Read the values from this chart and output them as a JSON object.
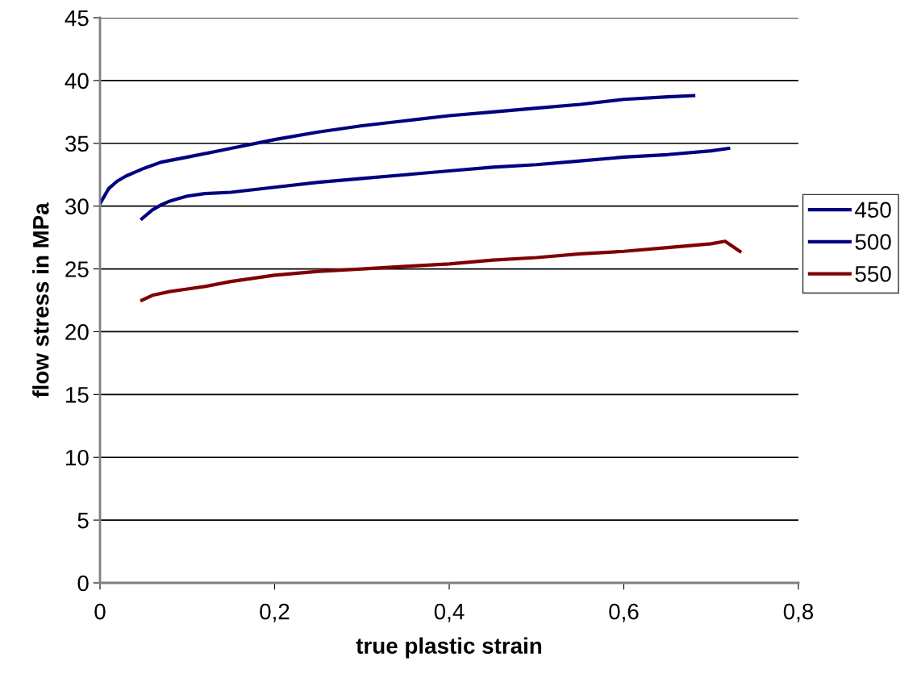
{
  "chart_data": {
    "type": "line",
    "xlabel": "true plastic strain",
    "ylabel": "flow stress in MPa",
    "xlim": [
      0,
      0.8
    ],
    "xticks": [
      {
        "value": 0,
        "label": "0"
      },
      {
        "value": 0.2,
        "label": "0,2"
      },
      {
        "value": 0.4,
        "label": "0,4"
      },
      {
        "value": 0.6,
        "label": "0,6"
      },
      {
        "value": 0.8,
        "label": "0,8"
      }
    ],
    "ylim": [
      0,
      45
    ],
    "yticks": [
      0,
      5,
      10,
      15,
      20,
      25,
      30,
      35,
      40,
      45
    ],
    "grid": "y",
    "legend": "right",
    "marker": "none",
    "line_style": "solid",
    "series": [
      {
        "name": "450",
        "color": "#000080",
        "x": [
          0,
          0.01,
          0.02,
          0.03,
          0.04,
          0.05,
          0.07,
          0.1,
          0.15,
          0.2,
          0.25,
          0.3,
          0.35,
          0.4,
          0.45,
          0.5,
          0.55,
          0.6,
          0.65,
          0.68
        ],
        "values": [
          30.2,
          31.4,
          32.0,
          32.4,
          32.7,
          33.0,
          33.5,
          33.9,
          34.6,
          35.3,
          35.9,
          36.4,
          36.8,
          37.2,
          37.5,
          37.8,
          38.1,
          38.5,
          38.7,
          38.8
        ]
      },
      {
        "name": "500",
        "color": "#000080",
        "x": [
          0.048,
          0.06,
          0.07,
          0.08,
          0.09,
          0.1,
          0.12,
          0.15,
          0.2,
          0.25,
          0.3,
          0.35,
          0.4,
          0.45,
          0.5,
          0.55,
          0.6,
          0.65,
          0.7,
          0.72
        ],
        "values": [
          29.0,
          29.7,
          30.1,
          30.4,
          30.6,
          30.8,
          31.0,
          31.1,
          31.5,
          31.9,
          32.2,
          32.5,
          32.8,
          33.1,
          33.3,
          33.6,
          33.9,
          34.1,
          34.4,
          34.6
        ]
      },
      {
        "name": "550",
        "color": "#800000",
        "x": [
          0.048,
          0.06,
          0.08,
          0.1,
          0.12,
          0.15,
          0.2,
          0.25,
          0.3,
          0.35,
          0.4,
          0.45,
          0.5,
          0.55,
          0.6,
          0.65,
          0.7,
          0.716,
          0.733
        ],
        "values": [
          22.5,
          22.9,
          23.2,
          23.4,
          23.6,
          24.0,
          24.5,
          24.8,
          25.0,
          25.2,
          25.4,
          25.7,
          25.9,
          26.2,
          26.4,
          26.7,
          27.0,
          27.2,
          26.4
        ]
      }
    ]
  }
}
